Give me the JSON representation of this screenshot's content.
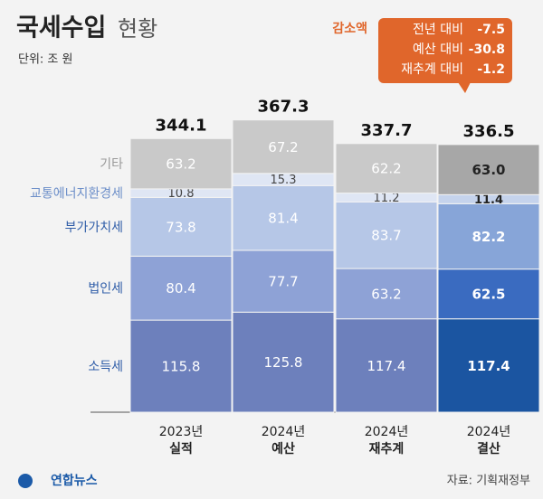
{
  "chart_data": {
    "type": "stacked-bar",
    "title": "국세수입",
    "title_suffix": "현황",
    "unit": "단위: 조 원",
    "years": [
      "2023년",
      "2024년",
      "2024년",
      "2024년"
    ],
    "categories": [
      "실적",
      "예산",
      "재추계",
      "결산"
    ],
    "totals": [
      344.1,
      367.3,
      337.7,
      336.5
    ],
    "series": [
      {
        "name": "소득세",
        "colors": [
          "#6d80bc",
          "#6d80bc",
          "#6d80bc",
          "#1b55a1"
        ],
        "values": [
          115.8,
          125.8,
          117.4,
          117.4
        ]
      },
      {
        "name": "법인세",
        "colors": [
          "#8ea2d6",
          "#8ea2d6",
          "#8ea2d6",
          "#3a6bc0"
        ],
        "values": [
          80.4,
          77.7,
          63.2,
          62.5
        ]
      },
      {
        "name": "부가가치세",
        "colors": [
          "#b6c7e7",
          "#b6c7e7",
          "#b6c7e7",
          "#87a5d8"
        ],
        "values": [
          73.8,
          81.4,
          83.7,
          82.2
        ]
      },
      {
        "name": "교통에너지환경세",
        "colors": [
          "#dfe6f4",
          "#dfe6f4",
          "#dfe6f4",
          "#c5d3ec"
        ],
        "values": [
          10.8,
          15.3,
          11.2,
          11.4
        ]
      },
      {
        "name": "기타",
        "colors": [
          "#c9c9c9",
          "#c9c9c9",
          "#c9c9c9",
          "#a7a7a7"
        ],
        "values": [
          63.2,
          67.2,
          62.2,
          63
        ],
        "value_labels": [
          "63.2",
          "67.2",
          "62.2",
          "63.0"
        ]
      }
    ],
    "callout": {
      "title": "감소액",
      "rows": [
        {
          "label": "전년 대비",
          "value": -7.5
        },
        {
          "label": "예산 대비",
          "value": -30.8
        },
        {
          "label": "재추계 대비",
          "value": -1.2
        }
      ]
    },
    "source": "자료: 기획재정부",
    "logo": "연합뉴스"
  }
}
